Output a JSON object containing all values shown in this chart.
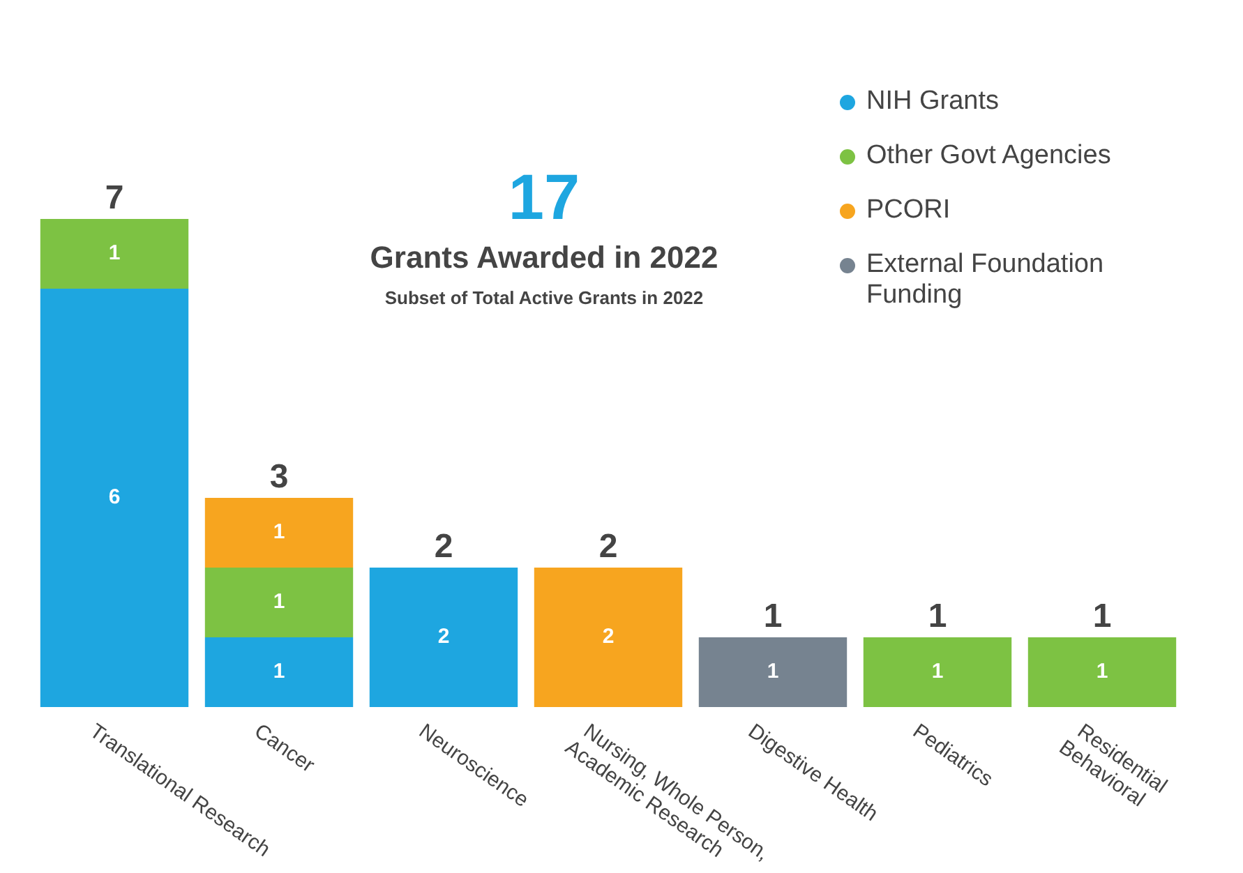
{
  "chart_data": {
    "type": "bar",
    "stacked": true,
    "title": "17",
    "subtitle": "Grants Awarded in 2022",
    "annotations": [
      "Subset of Total Active Grants in 2022"
    ],
    "categories": [
      "Translational Research",
      "Cancer",
      "Neuroscience",
      "Nursing, Whole Person, Academic Research",
      "Digestive Health",
      "Pediatrics",
      "Residential Behavioral"
    ],
    "series": [
      {
        "name": "NIH Grants",
        "color": "#1ea6e0",
        "values": [
          6,
          1,
          2,
          null,
          null,
          null,
          null
        ]
      },
      {
        "name": "Other Govt Agencies",
        "color": "#7dc243",
        "values": [
          1,
          1,
          null,
          null,
          null,
          1,
          1
        ]
      },
      {
        "name": "PCORI",
        "color": "#f7a51f",
        "values": [
          null,
          1,
          null,
          2,
          null,
          null,
          null
        ]
      },
      {
        "name": "External Foundation Funding",
        "color": "#768390",
        "values": [
          null,
          null,
          null,
          null,
          1,
          null,
          null
        ]
      }
    ],
    "data_labels": true,
    "totals": [
      "7",
      "3",
      "2",
      "2",
      "1",
      "1",
      "1"
    ],
    "legend": "top right",
    "grid": false
  }
}
